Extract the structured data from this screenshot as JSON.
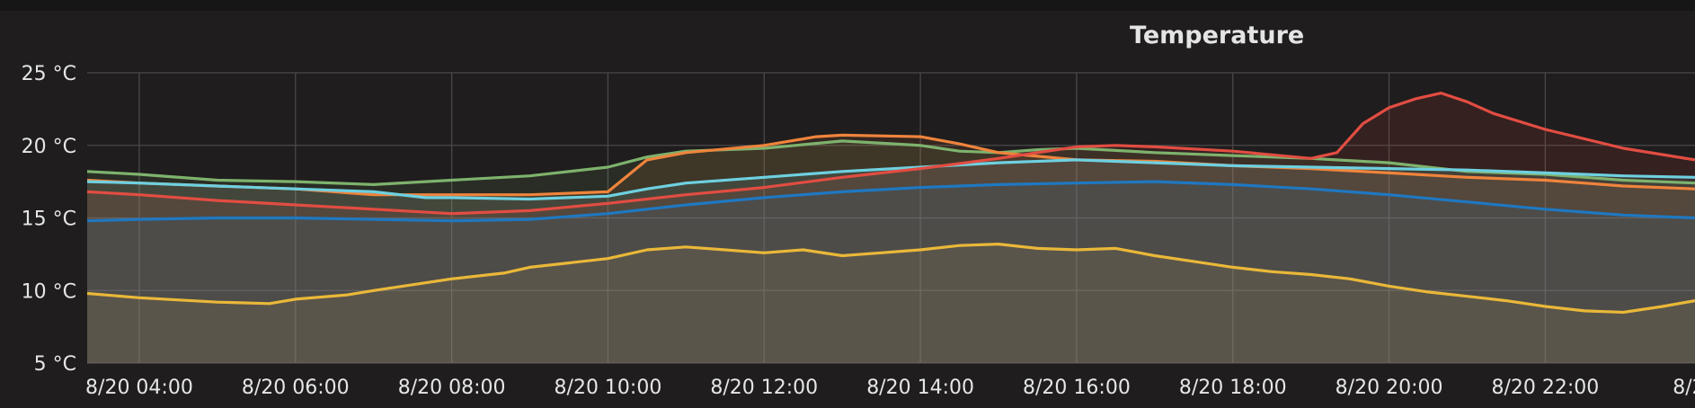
{
  "panel": {
    "title": "Temperature"
  },
  "chart_data": {
    "type": "line",
    "title": "Temperature",
    "xlabel": "",
    "ylabel": "",
    "x_unit": "time",
    "x_range": [
      "8/20 03:20",
      "8/20 23:55"
    ],
    "ylim": [
      5,
      25
    ],
    "grid": true,
    "legend": "none",
    "x_ticks": [
      "8/20 04:00",
      "8/20 06:00",
      "8/20 08:00",
      "8/20 10:00",
      "8/20 12:00",
      "8/20 14:00",
      "8/20 16:00",
      "8/20 18:00",
      "8/20 20:00",
      "8/20 22:00",
      "8/2"
    ],
    "y_ticks": [
      "5 °C",
      "10 °C",
      "15 °C",
      "20 °C",
      "25 °C"
    ],
    "series": [
      {
        "color": "#eab839",
        "points": [
          [
            "03:20",
            9.8
          ],
          [
            "04:00",
            9.5
          ],
          [
            "05:00",
            9.2
          ],
          [
            "05:40",
            9.1
          ],
          [
            "06:00",
            9.4
          ],
          [
            "06:40",
            9.7
          ],
          [
            "07:00",
            10.0
          ],
          [
            "08:00",
            10.8
          ],
          [
            "08:40",
            11.2
          ],
          [
            "09:00",
            11.6
          ],
          [
            "10:00",
            12.2
          ],
          [
            "10:30",
            12.8
          ],
          [
            "11:00",
            13.0
          ],
          [
            "11:30",
            12.8
          ],
          [
            "12:00",
            12.6
          ],
          [
            "12:30",
            12.8
          ],
          [
            "13:00",
            12.4
          ],
          [
            "13:30",
            12.6
          ],
          [
            "14:00",
            12.8
          ],
          [
            "14:30",
            13.1
          ],
          [
            "15:00",
            13.2
          ],
          [
            "15:30",
            12.9
          ],
          [
            "16:00",
            12.8
          ],
          [
            "16:30",
            12.9
          ],
          [
            "17:00",
            12.4
          ],
          [
            "17:30",
            12.0
          ],
          [
            "18:00",
            11.6
          ],
          [
            "18:30",
            11.3
          ],
          [
            "19:00",
            11.1
          ],
          [
            "19:30",
            10.8
          ],
          [
            "20:00",
            10.3
          ],
          [
            "20:30",
            9.9
          ],
          [
            "21:00",
            9.6
          ],
          [
            "21:30",
            9.3
          ],
          [
            "22:00",
            8.9
          ],
          [
            "22:30",
            8.6
          ],
          [
            "23:00",
            8.5
          ],
          [
            "23:30",
            8.9
          ],
          [
            "23:55",
            9.3
          ]
        ]
      },
      {
        "color": "#7eb26d",
        "points": [
          [
            "03:20",
            18.2
          ],
          [
            "04:00",
            18.0
          ],
          [
            "05:00",
            17.6
          ],
          [
            "06:00",
            17.5
          ],
          [
            "07:00",
            17.3
          ],
          [
            "08:00",
            17.6
          ],
          [
            "09:00",
            17.9
          ],
          [
            "10:00",
            18.5
          ],
          [
            "10:30",
            19.2
          ],
          [
            "11:00",
            19.6
          ],
          [
            "12:00",
            19.8
          ],
          [
            "13:00",
            20.3
          ],
          [
            "14:00",
            20.0
          ],
          [
            "14:30",
            19.6
          ],
          [
            "15:00",
            19.5
          ],
          [
            "15:30",
            19.7
          ],
          [
            "16:00",
            19.8
          ],
          [
            "17:00",
            19.5
          ],
          [
            "18:00",
            19.3
          ],
          [
            "19:00",
            19.1
          ],
          [
            "20:00",
            18.8
          ],
          [
            "21:00",
            18.2
          ],
          [
            "22:00",
            18.0
          ],
          [
            "23:00",
            17.6
          ],
          [
            "23:55",
            17.4
          ]
        ]
      },
      {
        "color": "#ef843c",
        "points": [
          [
            "03:20",
            17.6
          ],
          [
            "04:00",
            17.4
          ],
          [
            "05:00",
            17.2
          ],
          [
            "06:00",
            17.0
          ],
          [
            "07:00",
            16.6
          ],
          [
            "08:00",
            16.6
          ],
          [
            "09:00",
            16.6
          ],
          [
            "10:00",
            16.8
          ],
          [
            "10:30",
            19.0
          ],
          [
            "11:00",
            19.5
          ],
          [
            "12:00",
            20.0
          ],
          [
            "12:40",
            20.6
          ],
          [
            "13:00",
            20.7
          ],
          [
            "14:00",
            20.6
          ],
          [
            "14:30",
            20.1
          ],
          [
            "15:00",
            19.5
          ],
          [
            "16:00",
            19.0
          ],
          [
            "17:00",
            18.9
          ],
          [
            "18:00",
            18.6
          ],
          [
            "19:00",
            18.4
          ],
          [
            "20:00",
            18.1
          ],
          [
            "21:00",
            17.8
          ],
          [
            "22:00",
            17.6
          ],
          [
            "23:00",
            17.2
          ],
          [
            "23:55",
            17.0
          ]
        ]
      },
      {
        "color": "#6ed0e0",
        "points": [
          [
            "03:20",
            17.5
          ],
          [
            "04:00",
            17.4
          ],
          [
            "05:00",
            17.2
          ],
          [
            "06:00",
            17.0
          ],
          [
            "07:00",
            16.8
          ],
          [
            "07:40",
            16.4
          ],
          [
            "08:00",
            16.4
          ],
          [
            "09:00",
            16.3
          ],
          [
            "10:00",
            16.5
          ],
          [
            "10:30",
            17.0
          ],
          [
            "11:00",
            17.4
          ],
          [
            "12:00",
            17.8
          ],
          [
            "13:00",
            18.2
          ],
          [
            "14:00",
            18.5
          ],
          [
            "15:00",
            18.8
          ],
          [
            "16:00",
            19.0
          ],
          [
            "17:00",
            18.8
          ],
          [
            "18:00",
            18.6
          ],
          [
            "19:00",
            18.5
          ],
          [
            "20:00",
            18.4
          ],
          [
            "21:00",
            18.3
          ],
          [
            "22:00",
            18.1
          ],
          [
            "23:00",
            17.9
          ],
          [
            "23:55",
            17.8
          ]
        ]
      },
      {
        "color": "#e24d42",
        "points": [
          [
            "03:20",
            16.8
          ],
          [
            "04:00",
            16.6
          ],
          [
            "05:00",
            16.2
          ],
          [
            "06:00",
            15.9
          ],
          [
            "07:00",
            15.6
          ],
          [
            "08:00",
            15.3
          ],
          [
            "09:00",
            15.5
          ],
          [
            "10:00",
            16.0
          ],
          [
            "11:00",
            16.6
          ],
          [
            "12:00",
            17.1
          ],
          [
            "13:00",
            17.8
          ],
          [
            "14:00",
            18.4
          ],
          [
            "15:00",
            19.1
          ],
          [
            "16:00",
            19.9
          ],
          [
            "16:30",
            20.0
          ],
          [
            "17:00",
            19.9
          ],
          [
            "18:00",
            19.6
          ],
          [
            "19:00",
            19.1
          ],
          [
            "19:20",
            19.5
          ],
          [
            "19:40",
            21.5
          ],
          [
            "20:00",
            22.6
          ],
          [
            "20:20",
            23.2
          ],
          [
            "20:40",
            23.6
          ],
          [
            "21:00",
            23.0
          ],
          [
            "21:20",
            22.2
          ],
          [
            "22:00",
            21.1
          ],
          [
            "23:00",
            19.8
          ],
          [
            "23:55",
            19.0
          ]
        ]
      },
      {
        "color": "#1f78c1",
        "points": [
          [
            "03:20",
            14.8
          ],
          [
            "04:00",
            14.9
          ],
          [
            "05:00",
            15.0
          ],
          [
            "06:00",
            15.0
          ],
          [
            "07:00",
            14.9
          ],
          [
            "08:00",
            14.8
          ],
          [
            "09:00",
            14.9
          ],
          [
            "10:00",
            15.3
          ],
          [
            "11:00",
            15.9
          ],
          [
            "12:00",
            16.4
          ],
          [
            "13:00",
            16.8
          ],
          [
            "14:00",
            17.1
          ],
          [
            "15:00",
            17.3
          ],
          [
            "16:00",
            17.4
          ],
          [
            "17:00",
            17.5
          ],
          [
            "18:00",
            17.3
          ],
          [
            "19:00",
            17.0
          ],
          [
            "20:00",
            16.6
          ],
          [
            "21:00",
            16.1
          ],
          [
            "22:00",
            15.6
          ],
          [
            "23:00",
            15.2
          ],
          [
            "23:55",
            15.0
          ]
        ]
      }
    ]
  }
}
